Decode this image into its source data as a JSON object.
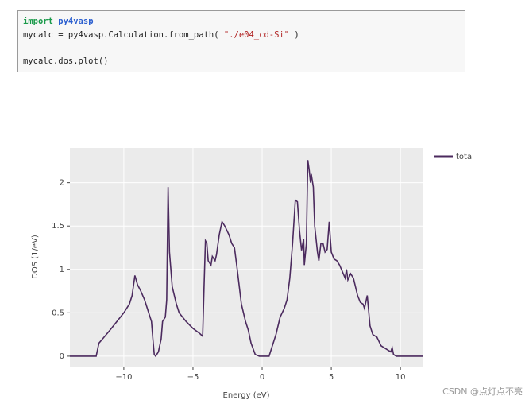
{
  "code": {
    "lines": [
      {
        "keyword": "import",
        "module": "py4vasp"
      },
      {
        "pre": "mycalc = py4vasp.Calculation.from_path(",
        "string": "\"./e04_cd-Si\"",
        "post": ")"
      },
      {
        "text": "mycalc.dos.plot()"
      }
    ]
  },
  "chart_data": {
    "type": "line",
    "xlabel": "Energy (eV)",
    "ylabel": "DOS (1/eV)",
    "x": [
      -13.9,
      -12,
      -11.8,
      -11,
      -10.5,
      -10,
      -9.6,
      -9.4,
      -9.2,
      -9.0,
      -8.8,
      -8.5,
      -8.2,
      -8,
      -7.9,
      -7.8,
      -7.7,
      -7.5,
      -7.3,
      -7.2,
      -7.0,
      -6.9,
      -6.8,
      -6.7,
      -6.5,
      -6.2,
      -6,
      -5.5,
      -5,
      -4.5,
      -4.3,
      -4.2,
      -4.1,
      -4.0,
      -3.9,
      -3.7,
      -3.6,
      -3.4,
      -3.3,
      -3.1,
      -2.9,
      -2.7,
      -2.4,
      -2.2,
      -2,
      -1.8,
      -1.5,
      -1.2,
      -1,
      -0.8,
      -0.5,
      -0.2,
      0.5,
      0.7,
      1,
      1.3,
      1.6,
      1.8,
      2.0,
      2.2,
      2.3,
      2.4,
      2.55,
      2.7,
      2.85,
      3.0,
      3.05,
      3.2,
      3.3,
      3.4,
      3.5,
      3.55,
      3.7,
      3.8,
      4.0,
      4.1,
      4.25,
      4.4,
      4.55,
      4.7,
      4.85,
      5.0,
      5.2,
      5.4,
      5.6,
      6.0,
      6.1,
      6.2,
      6.4,
      6.6,
      6.9,
      7.1,
      7.3,
      7.4,
      7.6,
      7.8,
      8,
      8.3,
      8.6,
      9.0,
      9.3,
      9.4,
      9.5,
      9.7,
      11.6
    ],
    "series": [
      {
        "name": "total",
        "color": "#4b2a5e",
        "values": [
          0,
          0,
          0.15,
          0.3,
          0.4,
          0.5,
          0.6,
          0.7,
          0.93,
          0.82,
          0.76,
          0.65,
          0.5,
          0.4,
          0.2,
          0.02,
          0,
          0.05,
          0.2,
          0.4,
          0.45,
          0.65,
          1.95,
          1.2,
          0.8,
          0.6,
          0.5,
          0.4,
          0.32,
          0.26,
          0.23,
          0.8,
          1.33,
          1.3,
          1.1,
          1.05,
          1.15,
          1.1,
          1.17,
          1.4,
          1.55,
          1.5,
          1.4,
          1.3,
          1.25,
          1.0,
          0.6,
          0.4,
          0.3,
          0.15,
          0.02,
          0,
          0,
          0.1,
          0.25,
          0.45,
          0.55,
          0.65,
          0.9,
          1.3,
          1.55,
          1.8,
          1.78,
          1.45,
          1.22,
          1.35,
          1.05,
          1.3,
          2.26,
          2.15,
          2.0,
          2.1,
          1.95,
          1.5,
          1.2,
          1.1,
          1.3,
          1.3,
          1.2,
          1.23,
          1.55,
          1.2,
          1.12,
          1.1,
          1.05,
          0.9,
          1.0,
          0.88,
          0.95,
          0.9,
          0.7,
          0.62,
          0.6,
          0.55,
          0.7,
          0.35,
          0.25,
          0.22,
          0.12,
          0.08,
          0.05,
          0.1,
          0.02,
          0,
          0
        ]
      }
    ],
    "xlim": [
      -13.9,
      11.6
    ],
    "ylim": [
      -0.12,
      2.4
    ],
    "xticks": [
      {
        "value": -10,
        "label": "−10"
      },
      {
        "value": -5,
        "label": "−5"
      },
      0,
      5,
      10
    ],
    "yticks": [
      0,
      0.5,
      1,
      1.5,
      2
    ],
    "grid": true,
    "legend": "right"
  },
  "watermark": "CSDN @点灯点不亮"
}
